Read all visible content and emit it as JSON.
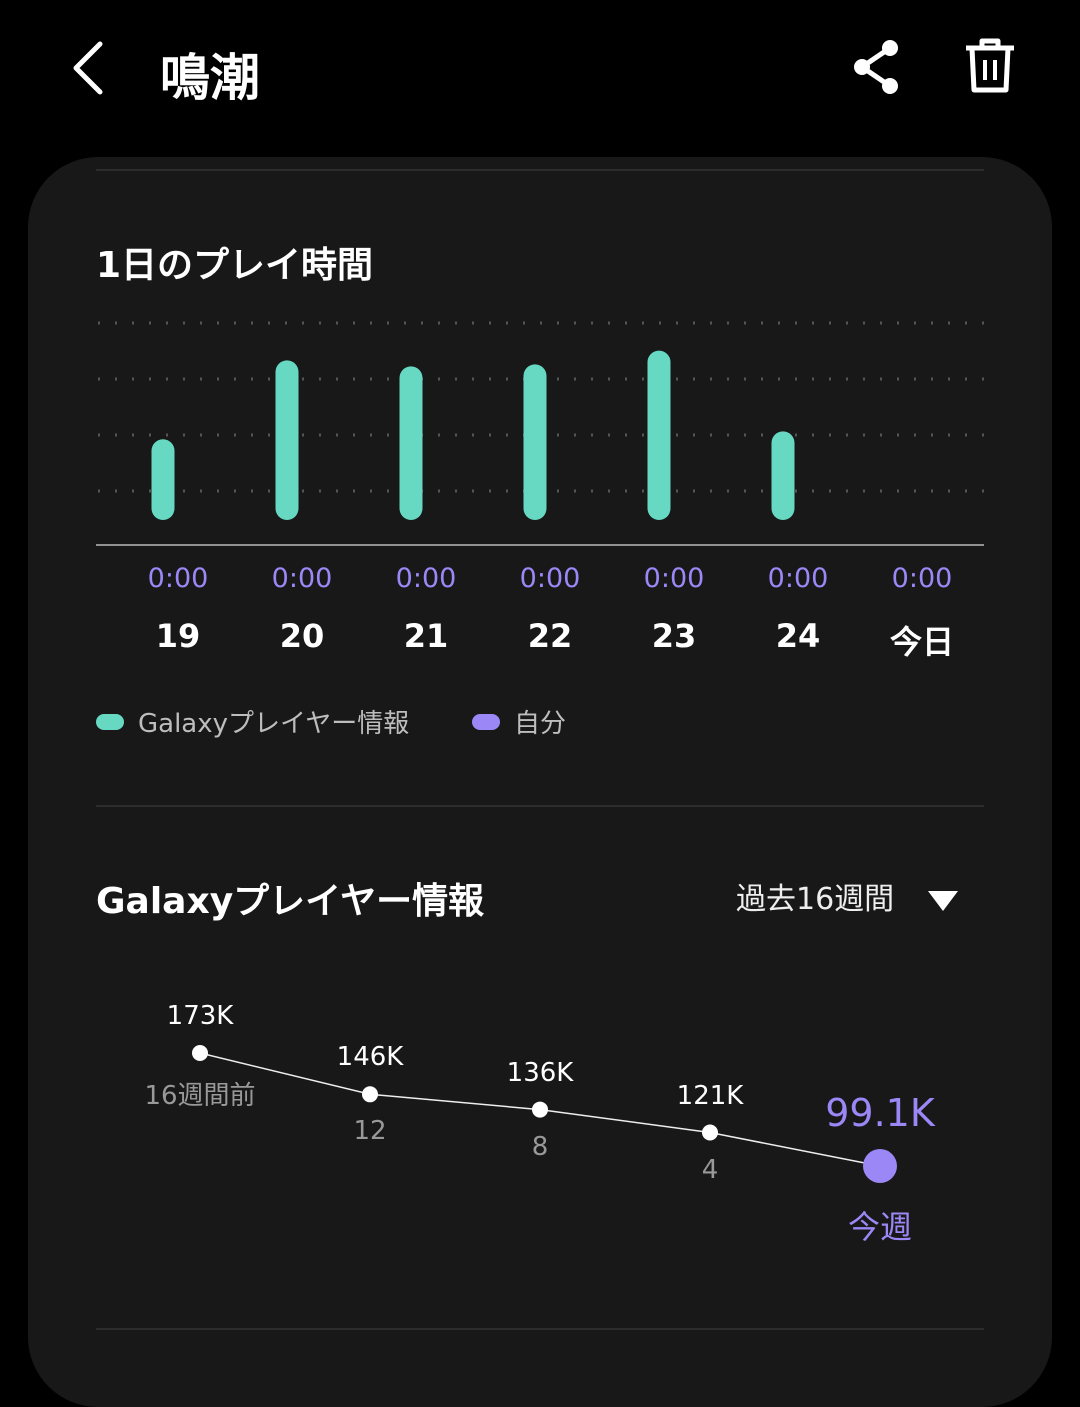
{
  "header": {
    "title": "鳴潮",
    "back_icon": "chevron-left-icon",
    "share_icon": "share-icon",
    "delete_icon": "trash-icon"
  },
  "daily": {
    "title": "1日のプレイ時間",
    "times": [
      "0:00",
      "0:00",
      "0:00",
      "0:00",
      "0:00",
      "0:00",
      "0:00"
    ],
    "legend": [
      {
        "label": "Galaxyプレイヤー情報",
        "color": "#67d9c3"
      },
      {
        "label": "自分",
        "color": "#9b87f5"
      }
    ],
    "chart_data": {
      "type": "bar",
      "categories": [
        "19",
        "20",
        "21",
        "22",
        "23",
        "24",
        "今日"
      ],
      "values": [
        0.41,
        0.81,
        0.78,
        0.79,
        0.86,
        0.45,
        0
      ],
      "grid": true,
      "color": "#67d9c3"
    }
  },
  "weekly": {
    "title": "Galaxyプレイヤー情報",
    "range_select": "過去16週間",
    "chart_data": {
      "type": "line",
      "categories": [
        "16週間前",
        "12",
        "8",
        "4",
        "今週"
      ],
      "value_labels": [
        "173K",
        "146K",
        "136K",
        "121K",
        "99.1K"
      ],
      "values": [
        173,
        146,
        136,
        121,
        99.1
      ],
      "highlight_color": "#9b87f5"
    }
  }
}
